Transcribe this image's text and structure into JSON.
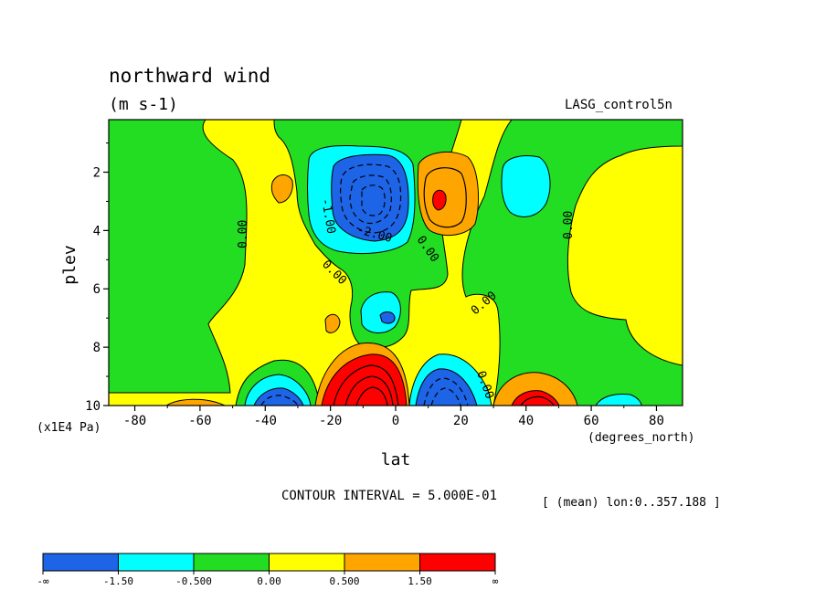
{
  "chart_data": {
    "type": "heatmap",
    "title": "northward wind",
    "subtitle": "(m s-1)",
    "dataset_label": "LASG_control5n",
    "xlabel": "lat",
    "x_units": "(degrees_north)",
    "ylabel": "plev",
    "y_units": "(x1E4 Pa)",
    "x_ticks": [
      "-80",
      "-60",
      "-40",
      "-20",
      "0",
      "20",
      "40",
      "60",
      "80"
    ],
    "y_ticks": [
      "2",
      "4",
      "6",
      "8",
      "10"
    ],
    "xlim": [
      -88,
      88
    ],
    "ylim": [
      0.2,
      10
    ],
    "contour_interval_text": "CONTOUR INTERVAL = 5.000E-01",
    "mean_text": "[ (mean) lon:0..357.188 ]",
    "contour_labels": [
      "-1.00",
      "-2.00",
      "0.00",
      "0.00",
      "0.00",
      "0.00",
      "0.00",
      "0.00",
      "0.00"
    ],
    "legend": {
      "colors": [
        "#1e64e6",
        "#00ffff",
        "#22dd22",
        "#ffff00",
        "#ffa500",
        "#ff0000"
      ],
      "labels": [
        "-∞",
        "-1.50",
        "-0.500",
        "0.00",
        "0.500",
        "1.50",
        "∞"
      ]
    },
    "features": [
      {
        "lat": -6,
        "plev": 2.9,
        "value": -2.4
      },
      {
        "lat": -6,
        "plev": 7.0,
        "value": -1.2
      },
      {
        "lat": 13,
        "plev": 2.8,
        "value": 1.6
      },
      {
        "lat": -6,
        "plev": 9.5,
        "value": 3.5
      },
      {
        "lat": 16,
        "plev": 9.4,
        "value": -2.5
      },
      {
        "lat": -37,
        "plev": 9.7,
        "value": -2.0
      },
      {
        "lat": 44,
        "plev": 9.8,
        "value": 2.5
      },
      {
        "lat": 43,
        "plev": 2.4,
        "value": -0.8
      },
      {
        "lat": -65,
        "plev": 3.0,
        "value": -0.3
      },
      {
        "lat": 78,
        "plev": 4.0,
        "value": 0.3
      }
    ]
  }
}
